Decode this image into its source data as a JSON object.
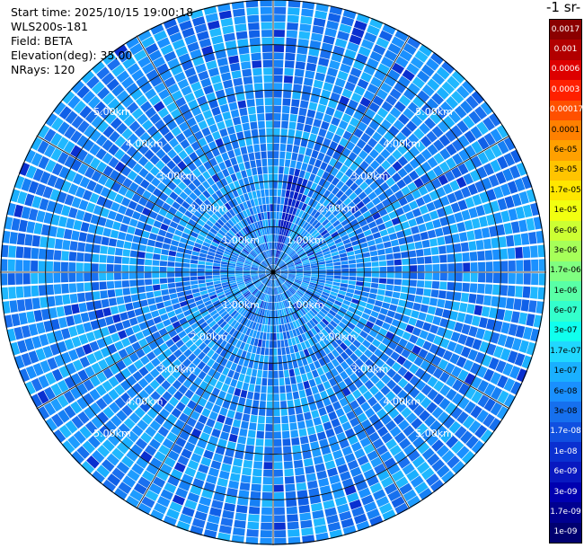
{
  "info": {
    "start_time": "Start time: 2025/10/15 19:00:18",
    "instrument": "WLS200s-181",
    "field": "Field: BETA",
    "elevation": "Elevation(deg): 35.00",
    "nrays": "NRays: 120"
  },
  "colorbar": {
    "units_label": "-1 sr-",
    "labels": [
      "0.0017",
      "0.001",
      "0.0006",
      "0.0003",
      "0.00017",
      "0.0001",
      "6e-05",
      "3e-05",
      "1.7e-05",
      "1e-05",
      "6e-06",
      "3e-06",
      "1.7e-06",
      "1e-06",
      "6e-07",
      "3e-07",
      "1.7e-07",
      "1e-07",
      "6e-08",
      "3e-08",
      "1.7e-08",
      "1e-08",
      "6e-09",
      "3e-09",
      "1.7e-09",
      "1e-09"
    ],
    "colors": [
      "#8b0000",
      "#b20000",
      "#dd0000",
      "#ff2000",
      "#ff5000",
      "#ff8000",
      "#ffa000",
      "#ffc400",
      "#ffe600",
      "#f2ff10",
      "#ccff33",
      "#a6ff59",
      "#80ff80",
      "#59ffa6",
      "#33ffcc",
      "#10ffee",
      "#20d8ff",
      "#1ab0ff",
      "#1a90ff",
      "#1670ee",
      "#1050e0",
      "#0a30d0",
      "#0818c0",
      "#0000b0",
      "#000090",
      "#000070"
    ]
  },
  "chart_data": {
    "type": "ppi",
    "field": "BETA",
    "elevation_deg": 35.0,
    "n_rays": 120,
    "range_rings_km": [
      1.0,
      2.0,
      3.0,
      4.0,
      5.0
    ],
    "ring_labels": [
      "1.00km",
      "2.00km",
      "3.00km",
      "4.00km",
      "5.00km"
    ],
    "max_range_km": 6.0,
    "dominant_values": [
      "3e-08",
      "6e-08",
      "1e-07",
      "1.7e-08"
    ],
    "notes_feature_azimuth_deg": [
      8,
      20
    ],
    "notes_feature_range_km": [
      0.1,
      2.1
    ]
  }
}
